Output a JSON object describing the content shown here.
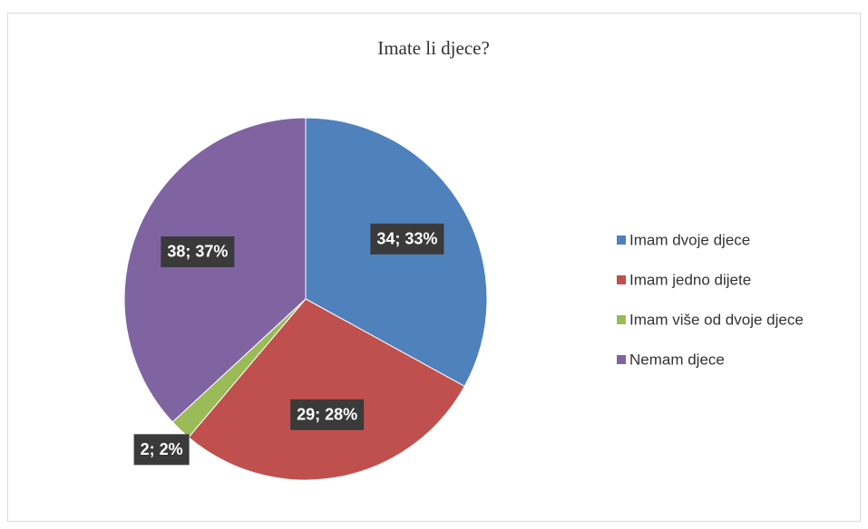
{
  "chart_data": {
    "type": "pie",
    "title": "Imate li djece?",
    "categories": [
      "Imam dvoje djece",
      "Imam jedno dijete",
      "Imam više od dvoje djece",
      "Nemam djece"
    ],
    "values": [
      34,
      29,
      2,
      38
    ],
    "value_labels": [
      "34; 33%",
      "29; 28%",
      "2; 2%",
      "38; 37%"
    ],
    "colors": [
      "#4f81bd",
      "#c0504d",
      "#9bbb59",
      "#8064a2"
    ],
    "legend": "right"
  }
}
